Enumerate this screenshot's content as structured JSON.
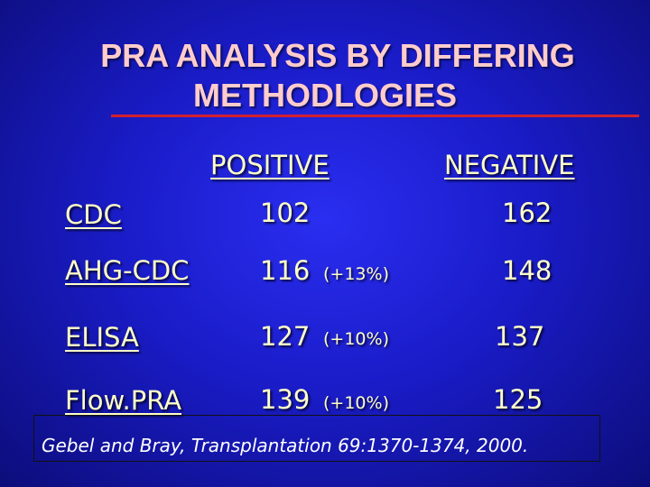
{
  "slide": {
    "title_line1": "PRA ANALYSIS BY DIFFERING",
    "title_line2": "METHODLOGIES",
    "accent_color": "#d2202e",
    "text_color": "#ffffc8",
    "background_color": "#1a1cc8"
  },
  "table": {
    "headers": {
      "positive": "POSITIVE",
      "negative": "NEGATIVE"
    },
    "rows": [
      {
        "method": "CDC",
        "positive": "102",
        "change": "",
        "negative": "162"
      },
      {
        "method": "AHG-CDC",
        "positive": "116",
        "change": "(+13%)",
        "negative": "148"
      },
      {
        "method": "ELISA",
        "positive": "127",
        "change": "(+10%)",
        "negative": "137"
      },
      {
        "method": "Flow.PRA",
        "positive": "139",
        "change": "(+10%)",
        "negative": "125"
      }
    ]
  },
  "citation": "Gebel and Bray, Transplantation 69:1370-1374, 2000."
}
